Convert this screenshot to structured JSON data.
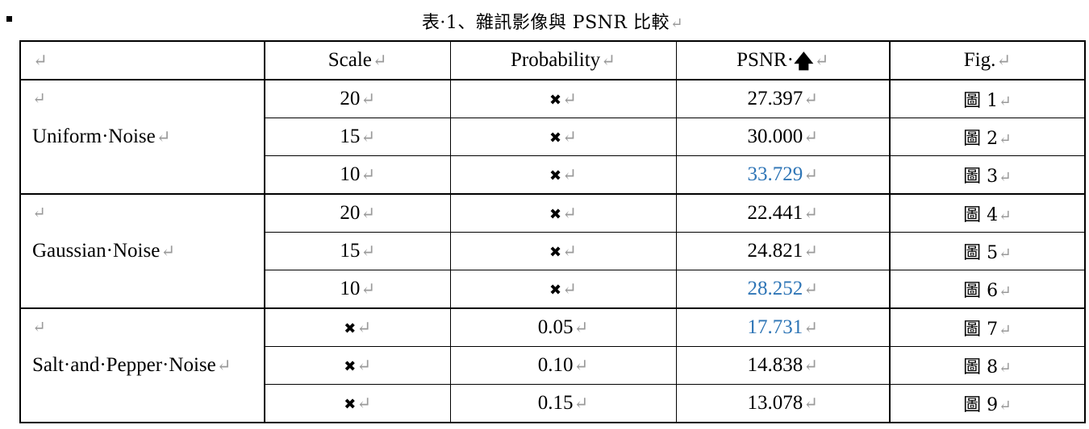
{
  "caption": "表·1、雜訊影像與 PSNR 比較",
  "return_mark": "↵",
  "header": {
    "blank": "",
    "scale": "Scale",
    "probability": "Probability",
    "psnr": "PSNR·",
    "psnr_arrow": "🡅",
    "fig": "Fig."
  },
  "groups": [
    {
      "name": "Uniform·Noise",
      "rows": [
        {
          "scale": "20",
          "probability": "✖",
          "psnr": "27.397",
          "fig": "圖 1",
          "highlight": false
        },
        {
          "scale": "15",
          "probability": "✖",
          "psnr": "30.000",
          "fig": "圖 2",
          "highlight": false
        },
        {
          "scale": "10",
          "probability": "✖",
          "psnr": "33.729",
          "fig": "圖 3",
          "highlight": true
        }
      ]
    },
    {
      "name": "Gaussian·Noise",
      "rows": [
        {
          "scale": "20",
          "probability": "✖",
          "psnr": "22.441",
          "fig": "圖 4",
          "highlight": false
        },
        {
          "scale": "15",
          "probability": "✖",
          "psnr": "24.821",
          "fig": "圖 5",
          "highlight": false
        },
        {
          "scale": "10",
          "probability": "✖",
          "psnr": "28.252",
          "fig": "圖 6",
          "highlight": true
        }
      ]
    },
    {
      "name": "Salt·and·Pepper·Noise",
      "rows": [
        {
          "scale": "✖",
          "probability": "0.05",
          "psnr": "17.731",
          "fig": "圖 7",
          "highlight": true
        },
        {
          "scale": "✖",
          "probability": "0.10",
          "psnr": "14.838",
          "fig": "圖 8",
          "highlight": false
        },
        {
          "scale": "✖",
          "probability": "0.15",
          "psnr": "13.078",
          "fig": "圖 9",
          "highlight": false
        }
      ]
    }
  ],
  "colors": {
    "highlight": "#2e75b6",
    "formatting_marks": "#9a9a9a"
  }
}
